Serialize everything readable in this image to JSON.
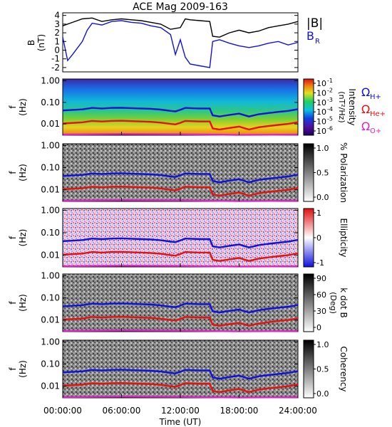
{
  "chart_data": [
    {
      "type": "line",
      "title": "ACE Mag 2009-163",
      "ylabel": "B",
      "yunit": "(nT)",
      "ylim": [
        -2.5,
        4.3
      ],
      "yticks": [
        "-2",
        "-1",
        "0",
        "1",
        "2",
        "3",
        "4"
      ],
      "legend": [
        "|B|",
        "B",
        "R"
      ],
      "series": [
        {
          "color": "#000000",
          "x": [
            0,
            1,
            2,
            3,
            4,
            5,
            6,
            7,
            8,
            9,
            10,
            11,
            12,
            12.5,
            13,
            14,
            15,
            15.3,
            16,
            17,
            18,
            19,
            20,
            21,
            22,
            23,
            24
          ],
          "y": [
            2.8,
            3.2,
            3.6,
            3.7,
            3.3,
            3.5,
            3.6,
            3.5,
            3.4,
            3.2,
            3.0,
            2.4,
            2.6,
            3.6,
            3.5,
            3.4,
            3.3,
            1.6,
            1.5,
            2.0,
            2.3,
            2.0,
            2.2,
            2.6,
            2.8,
            3.0,
            3.3
          ]
        },
        {
          "color": "#1010e0",
          "x": [
            0,
            0.5,
            1,
            2,
            2.5,
            3,
            4,
            5,
            6,
            7,
            8,
            9,
            10,
            11,
            11.5,
            12,
            12.5,
            13,
            14,
            15,
            15.3,
            16,
            17,
            18,
            19,
            20,
            21,
            22,
            23,
            24
          ],
          "y": [
            1.5,
            -1.2,
            -0.5,
            1.0,
            2.3,
            3.1,
            2.9,
            3.3,
            3.4,
            3.2,
            3.1,
            2.8,
            2.6,
            1.8,
            -0.5,
            1.2,
            -0.8,
            -1.6,
            -1.8,
            -2.0,
            1.0,
            1.2,
            0.8,
            0.5,
            0.3,
            0.5,
            0.8,
            1.0,
            0.6,
            0.9
          ]
        }
      ]
    },
    {
      "type": "heatmap",
      "ylabel": "f",
      "yunit": "(Hz)",
      "yticks": [
        "0.01",
        "0.10",
        "1.00"
      ],
      "colorbar": {
        "label": "Intensity",
        "unit": "(nT²/Hz)",
        "ticks": [
          "10",
          "10",
          "10",
          "10",
          "10",
          "10"
        ],
        "exponents": [
          "-6",
          "-5",
          "-4",
          "-3",
          "-2",
          "-1"
        ]
      },
      "side_labels": [
        {
          "symbol": "Ω",
          "sub": "H+",
          "color": "#1010e0"
        },
        {
          "symbol": "Ω",
          "sub": "He+",
          "color": "#e81010"
        },
        {
          "symbol": "Ω",
          "sub": "O+",
          "color": "#e020c8"
        }
      ]
    },
    {
      "type": "heatmap",
      "ylabel": "f",
      "yunit": "(Hz)",
      "yticks": [
        "0.01",
        "0.10",
        "1.00"
      ],
      "colorbar": {
        "label": "% Polarization",
        "ticks": [
          "0.0",
          "0.5",
          "1.0"
        ]
      }
    },
    {
      "type": "heatmap",
      "ylabel": "f",
      "yunit": "(Hz)",
      "yticks": [
        "0.01",
        "0.10",
        "1.00"
      ],
      "colorbar": {
        "label": "Ellipticity",
        "ticks": [
          "-1",
          "0",
          "1"
        ]
      }
    },
    {
      "type": "heatmap",
      "ylabel": "f",
      "yunit": "(Hz)",
      "yticks": [
        "0.01",
        "0.10",
        "1.00"
      ],
      "colorbar": {
        "label": "k dot B",
        "unit": "(Deg)",
        "ticks": [
          "0",
          "30",
          "60",
          "90"
        ]
      }
    },
    {
      "type": "heatmap",
      "ylabel": "f",
      "yunit": "(Hz)",
      "yticks": [
        "0.01",
        "0.10",
        "1.00"
      ],
      "colorbar": {
        "label": "Coherency",
        "ticks": [
          "0.0",
          "0.5",
          "1.0"
        ]
      }
    }
  ],
  "gyrofrequency_curves": [
    {
      "name": "H+",
      "color": "#1010e0",
      "x": [
        0,
        2,
        3,
        4,
        5,
        6,
        7,
        8,
        9,
        10,
        11,
        11.5,
        12,
        12.5,
        13,
        14,
        15,
        15.3,
        16,
        17,
        18,
        19,
        20,
        21,
        22,
        23,
        24
      ],
      "hz": [
        0.042,
        0.047,
        0.055,
        0.052,
        0.055,
        0.056,
        0.054,
        0.052,
        0.05,
        0.046,
        0.04,
        0.038,
        0.045,
        0.055,
        0.054,
        0.052,
        0.052,
        0.025,
        0.022,
        0.026,
        0.03,
        0.022,
        0.028,
        0.032,
        0.036,
        0.04,
        0.048
      ]
    },
    {
      "name": "He+",
      "color": "#e81010",
      "x": [
        0,
        2,
        3,
        4,
        5,
        6,
        7,
        8,
        9,
        10,
        11,
        11.5,
        12,
        12.5,
        13,
        14,
        15,
        15.3,
        16,
        17,
        18,
        19,
        20,
        21,
        22,
        23,
        24
      ],
      "hz": [
        0.0105,
        0.0118,
        0.0138,
        0.013,
        0.0138,
        0.014,
        0.0135,
        0.013,
        0.0125,
        0.0115,
        0.01,
        0.0095,
        0.0112,
        0.0138,
        0.0135,
        0.013,
        0.013,
        0.0062,
        0.0055,
        0.0065,
        0.0075,
        0.0055,
        0.007,
        0.008,
        0.009,
        0.01,
        0.012
      ]
    },
    {
      "name": "O+",
      "color": "#e020c8",
      "x": [
        0,
        6,
        12,
        18,
        24
      ],
      "hz": [
        0.0032,
        0.0034,
        0.0033,
        0.0031,
        0.0032
      ]
    }
  ],
  "x_axis": {
    "label": "Time (UT)",
    "range": [
      0,
      24
    ],
    "ticks": [
      "00:00:00",
      "06:00:00",
      "12:00:00",
      "18:00:00",
      "24:00:00"
    ]
  }
}
